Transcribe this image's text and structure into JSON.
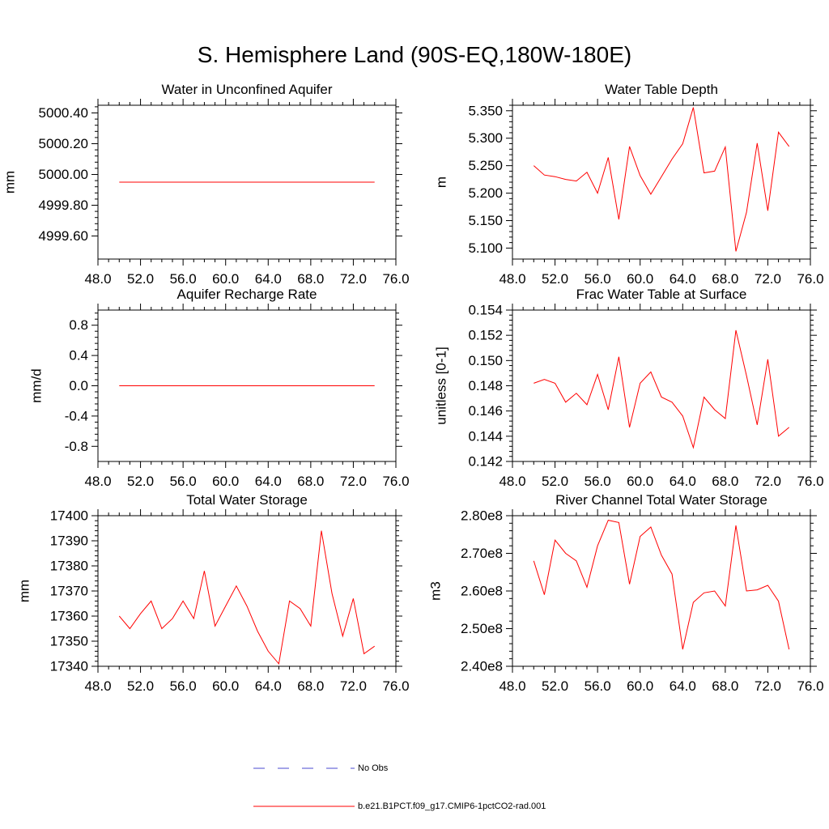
{
  "title": "S. Hemisphere Land (90S-EQ,180W-180E)",
  "colors": {
    "model": "#ff0000",
    "obs": "#4a4ad0",
    "axis": "#000000"
  },
  "legend": [
    {
      "label": "No Obs",
      "style": "dashed",
      "color": "#4a4ad0"
    },
    {
      "label": "b.e21.B1PCT.f09_g17.CMIP6-1pctCO2-rad.001",
      "style": "solid",
      "color": "#ff0000"
    }
  ],
  "chart_data": [
    {
      "type": "line",
      "title": "Water in Unconfined Aquifer",
      "ylabel": "mm",
      "xlim": [
        48,
        76
      ],
      "ylim": [
        4999.45,
        5000.45
      ],
      "xticks": [
        "48.0",
        "52.0",
        "56.0",
        "60.0",
        "64.0",
        "68.0",
        "72.0",
        "76.0"
      ],
      "yticks": [
        "4999.60",
        "4999.80",
        "5000.00",
        "5000.20",
        "5000.40"
      ],
      "x": [
        50,
        51,
        52,
        53,
        54,
        55,
        56,
        57,
        58,
        59,
        60,
        61,
        62,
        63,
        64,
        65,
        66,
        67,
        68,
        69,
        70,
        71,
        72,
        73,
        74
      ],
      "values": [
        4999.95,
        4999.95,
        4999.95,
        4999.95,
        4999.95,
        4999.95,
        4999.95,
        4999.95,
        4999.95,
        4999.95,
        4999.95,
        4999.95,
        4999.95,
        4999.95,
        4999.95,
        4999.95,
        4999.95,
        4999.95,
        4999.95,
        4999.95,
        4999.95,
        4999.95,
        4999.95,
        4999.95,
        4999.95
      ]
    },
    {
      "type": "line",
      "title": "Water Table Depth",
      "ylabel": "m",
      "xlim": [
        48,
        76
      ],
      "ylim": [
        5.08,
        5.36
      ],
      "xticks": [
        "48.0",
        "52.0",
        "56.0",
        "60.0",
        "64.0",
        "68.0",
        "72.0",
        "76.0"
      ],
      "yticks": [
        "5.100",
        "5.150",
        "5.200",
        "5.250",
        "5.300",
        "5.350"
      ],
      "x": [
        50,
        51,
        52,
        53,
        54,
        55,
        56,
        57,
        58,
        59,
        60,
        61,
        62,
        63,
        64,
        65,
        66,
        67,
        68,
        69,
        70,
        71,
        72,
        73,
        74
      ],
      "values": [
        5.25,
        5.233,
        5.23,
        5.225,
        5.222,
        5.238,
        5.2,
        5.265,
        5.152,
        5.285,
        5.232,
        5.198,
        5.23,
        5.262,
        5.29,
        5.356,
        5.237,
        5.24,
        5.284,
        5.094,
        5.165,
        5.291,
        5.168,
        5.311,
        5.285
      ]
    },
    {
      "type": "line",
      "title": "Aquifer Recharge Rate",
      "ylabel": "mm/d",
      "xlim": [
        48,
        76
      ],
      "ylim": [
        -1.0,
        1.0
      ],
      "xticks": [
        "48.0",
        "52.0",
        "56.0",
        "60.0",
        "64.0",
        "68.0",
        "72.0",
        "76.0"
      ],
      "yticks": [
        "-0.8",
        "-0.4",
        "0.0",
        "0.4",
        "0.8"
      ],
      "x": [
        50,
        51,
        52,
        53,
        54,
        55,
        56,
        57,
        58,
        59,
        60,
        61,
        62,
        63,
        64,
        65,
        66,
        67,
        68,
        69,
        70,
        71,
        72,
        73,
        74
      ],
      "values": [
        0,
        0,
        0,
        0,
        0,
        0,
        0,
        0,
        0,
        0,
        0,
        0,
        0,
        0,
        0,
        0,
        0,
        0,
        0,
        0,
        0,
        0,
        0,
        0,
        0
      ]
    },
    {
      "type": "line",
      "title": "Frac Water Table at Surface",
      "ylabel": "unitless [0-1]",
      "xlim": [
        48,
        76
      ],
      "ylim": [
        0.142,
        0.154
      ],
      "xticks": [
        "48.0",
        "52.0",
        "56.0",
        "60.0",
        "64.0",
        "68.0",
        "72.0",
        "76.0"
      ],
      "yticks": [
        "0.142",
        "0.144",
        "0.146",
        "0.148",
        "0.150",
        "0.152",
        "0.154"
      ],
      "x": [
        50,
        51,
        52,
        53,
        54,
        55,
        56,
        57,
        58,
        59,
        60,
        61,
        62,
        63,
        64,
        65,
        66,
        67,
        68,
        69,
        70,
        71,
        72,
        73,
        74
      ],
      "values": [
        0.1482,
        0.1485,
        0.1482,
        0.1467,
        0.1474,
        0.1465,
        0.1489,
        0.1461,
        0.1503,
        0.1447,
        0.1482,
        0.1491,
        0.1471,
        0.1467,
        0.1456,
        0.1431,
        0.1471,
        0.1461,
        0.1454,
        0.1524,
        0.1488,
        0.1449,
        0.1501,
        0.144,
        0.1447
      ]
    },
    {
      "type": "line",
      "title": "Total Water Storage",
      "ylabel": "mm",
      "xlim": [
        48,
        76
      ],
      "ylim": [
        17340,
        17400
      ],
      "xticks": [
        "48.0",
        "52.0",
        "56.0",
        "60.0",
        "64.0",
        "68.0",
        "72.0",
        "76.0"
      ],
      "yticks": [
        "17340",
        "17350",
        "17360",
        "17370",
        "17380",
        "17390",
        "17400"
      ],
      "x": [
        50,
        51,
        52,
        53,
        54,
        55,
        56,
        57,
        58,
        59,
        60,
        61,
        62,
        63,
        64,
        65,
        66,
        67,
        68,
        69,
        70,
        71,
        72,
        73,
        74
      ],
      "values": [
        17360,
        17355,
        17361,
        17366,
        17355,
        17359,
        17366,
        17359,
        17378,
        17356,
        17364,
        17372,
        17364,
        17354,
        17346,
        17341,
        17366,
        17363,
        17356,
        17394,
        17369,
        17352,
        17367,
        17345,
        17348
      ]
    },
    {
      "type": "line",
      "title": "River Channel Total Water Storage",
      "ylabel": "m3",
      "xlim": [
        48,
        76
      ],
      "ylim": [
        240000000,
        280000000
      ],
      "xticks": [
        "48.0",
        "52.0",
        "56.0",
        "60.0",
        "64.0",
        "68.0",
        "72.0",
        "76.0"
      ],
      "yticks": [
        "2.40e8",
        "2.50e8",
        "2.60e8",
        "2.70e8",
        "2.80e8"
      ],
      "x": [
        50,
        51,
        52,
        53,
        54,
        55,
        56,
        57,
        58,
        59,
        60,
        61,
        62,
        63,
        64,
        65,
        66,
        67,
        68,
        69,
        70,
        71,
        72,
        73,
        74
      ],
      "values": [
        268000000,
        259000000,
        273500000,
        270000000,
        268000000,
        261000000,
        272000000,
        278800000,
        278200000,
        261800000,
        274500000,
        277000000,
        269500000,
        264500000,
        244500000,
        257000000,
        259500000,
        260000000,
        256000000,
        277400000,
        260000000,
        260300000,
        261500000,
        257300000,
        244500000
      ]
    }
  ]
}
